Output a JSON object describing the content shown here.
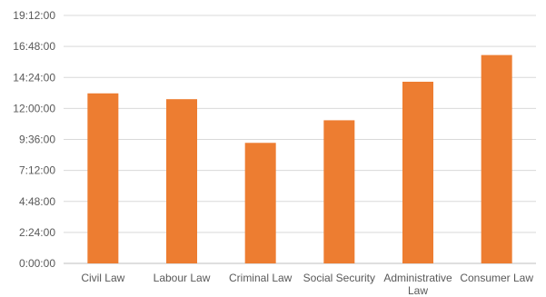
{
  "chart_data": {
    "type": "bar",
    "title": "",
    "xlabel": "",
    "ylabel": "",
    "categories": [
      [
        "Civil Law"
      ],
      [
        "Labour Law"
      ],
      [
        "Criminal Law"
      ],
      [
        "Social Security"
      ],
      [
        "Administrative",
        "Law"
      ],
      [
        "Consumer Law"
      ]
    ],
    "values_seconds": [
      47400,
      45780,
      33600,
      39900,
      50640,
      58080
    ],
    "values": [
      "13:10:00",
      "12:43:00",
      "9:20:00",
      "11:05:00",
      "14:04:00",
      "16:08:00"
    ],
    "y_ticks": [
      "0:00:00",
      "2:24:00",
      "4:48:00",
      "7:12:00",
      "9:36:00",
      "12:00:00",
      "14:24:00",
      "16:48:00",
      "19:12:00"
    ],
    "ylim_seconds": [
      0,
      69120
    ],
    "grid": true,
    "legend": "none",
    "bar_color": "#ED7D31"
  }
}
